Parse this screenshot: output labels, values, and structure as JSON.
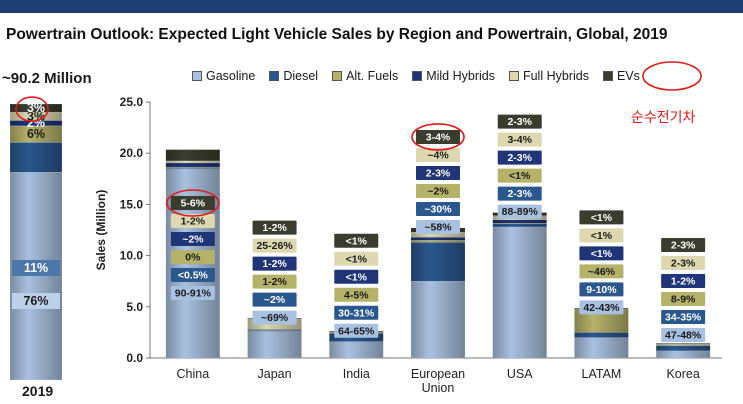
{
  "chart_data": {
    "type": "bar",
    "title": "Powertrain Outlook: Expected Light Vehicle Sales by Region and Powertrain, Global, 2019",
    "ylabel": "Sales (Million)",
    "ylim": [
      0,
      25
    ],
    "yticks": [
      "0.0",
      "5.0",
      "10.0",
      "15.0",
      "20.0",
      "25.0"
    ],
    "categories": [
      "China",
      "Japan",
      "India",
      "European\nUnion",
      "USA",
      "LATAM",
      "Korea"
    ],
    "legend": [
      "Gasoline",
      "Diesel",
      "Alt. Fuels",
      "Mild Hybrids",
      "Full Hybrids",
      "EVs"
    ],
    "colors": {
      "Gasoline": "#a9c1e0",
      "Diesel": "#2a578e",
      "Alt. Fuels": "#b5b26a",
      "Mild Hybrids": "#1f3577",
      "Full Hybrids": "#ddd8b0",
      "EVs": "#3a3d2e"
    },
    "series": [
      {
        "name": "Gasoline",
        "values": [
          18.5,
          2.6,
          1.6,
          7.5,
          12.8,
          2.0,
          0.7
        ]
      },
      {
        "name": "Diesel",
        "values": [
          0.1,
          0.1,
          0.8,
          3.8,
          0.3,
          0.5,
          0.5
        ]
      },
      {
        "name": "Alt. Fuels",
        "values": [
          0.05,
          0.05,
          0.1,
          0.2,
          0.05,
          2.2,
          0.1
        ]
      },
      {
        "name": "Mild Hybrids",
        "values": [
          0.4,
          0.05,
          0.02,
          0.3,
          0.35,
          0.05,
          0.02
        ]
      },
      {
        "name": "Full Hybrids",
        "values": [
          0.2,
          1.0,
          0.02,
          0.5,
          0.4,
          0.05,
          0.03
        ]
      },
      {
        "name": "EVs",
        "values": [
          1.1,
          0.05,
          0.02,
          0.4,
          0.3,
          0.05,
          0.03
        ]
      }
    ],
    "data_labels": [
      {
        "category": "China",
        "labels": [
          {
            "text": "90-91%",
            "series": "Gasoline"
          },
          {
            "text": "<0.5%",
            "series": "Diesel"
          },
          {
            "text": "0%",
            "series": "Alt. Fuels"
          },
          {
            "text": "~2%",
            "series": "Mild Hybrids"
          },
          {
            "text": "1-2%",
            "series": "Full Hybrids"
          },
          {
            "text": "5-6%",
            "series": "EVs"
          }
        ]
      },
      {
        "category": "Japan",
        "labels": [
          {
            "text": "~69%",
            "series": "Gasoline"
          },
          {
            "text": "~2%",
            "series": "Diesel"
          },
          {
            "text": "1-2%",
            "series": "Alt. Fuels"
          },
          {
            "text": "1-2%",
            "series": "Mild Hybrids"
          },
          {
            "text": "25-26%",
            "series": "Full Hybrids"
          },
          {
            "text": "1-2%",
            "series": "EVs"
          }
        ]
      },
      {
        "category": "India",
        "labels": [
          {
            "text": "64-65%",
            "series": "Gasoline"
          },
          {
            "text": "30-31%",
            "series": "Diesel"
          },
          {
            "text": "4-5%",
            "series": "Alt. Fuels"
          },
          {
            "text": "<1%",
            "series": "Mild Hybrids"
          },
          {
            "text": "<1%",
            "series": "Full Hybrids"
          },
          {
            "text": "<1%",
            "series": "EVs"
          }
        ]
      },
      {
        "category": "European Union",
        "labels": [
          {
            "text": "~58%",
            "series": "Gasoline"
          },
          {
            "text": "~30%",
            "series": "Diesel"
          },
          {
            "text": "~2%",
            "series": "Alt. Fuels"
          },
          {
            "text": "2-3%",
            "series": "Mild Hybrids"
          },
          {
            "text": "~4%",
            "series": "Full Hybrids"
          },
          {
            "text": "3-4%",
            "series": "EVs"
          }
        ]
      },
      {
        "category": "USA",
        "labels": [
          {
            "text": "88-89%",
            "series": "Gasoline"
          },
          {
            "text": "2-3%",
            "series": "Diesel"
          },
          {
            "text": "<1%",
            "series": "Alt. Fuels"
          },
          {
            "text": "2-3%",
            "series": "Mild Hybrids"
          },
          {
            "text": "3-4%",
            "series": "Full Hybrids"
          },
          {
            "text": "2-3%",
            "series": "EVs"
          }
        ]
      },
      {
        "category": "LATAM",
        "labels": [
          {
            "text": "42-43%",
            "series": "Gasoline"
          },
          {
            "text": "9-10%",
            "series": "Diesel"
          },
          {
            "text": "~46%",
            "series": "Alt. Fuels"
          },
          {
            "text": "<1%",
            "series": "Mild Hybrids"
          },
          {
            "text": "<1%",
            "series": "Full Hybrids"
          },
          {
            "text": "<1%",
            "series": "EVs"
          }
        ]
      },
      {
        "category": "Korea",
        "labels": [
          {
            "text": "47-48%",
            "series": "Gasoline"
          },
          {
            "text": "34-35%",
            "series": "Diesel"
          },
          {
            "text": "8-9%",
            "series": "Alt. Fuels"
          },
          {
            "text": "1-2%",
            "series": "Mild Hybrids"
          },
          {
            "text": "2-3%",
            "series": "Full Hybrids"
          },
          {
            "text": "2-3%",
            "series": "EVs"
          }
        ]
      }
    ],
    "global_total": {
      "title": "~90.2 Million",
      "year": "2019",
      "segments": [
        {
          "series": "Gasoline",
          "share": 76,
          "text": "76%"
        },
        {
          "series": "Diesel",
          "share": 11,
          "text": "11%"
        },
        {
          "series": "Alt. Fuels",
          "share": 6,
          "text": "6%"
        },
        {
          "series": "Mild Hybrids",
          "share": 2,
          "text": "2%"
        },
        {
          "series": "Full Hybrids",
          "share": 3,
          "text": "3%"
        },
        {
          "series": "EVs",
          "share": 3,
          "text": "3%"
        }
      ]
    }
  },
  "annotation": {
    "korean_text": "순수전기차"
  }
}
